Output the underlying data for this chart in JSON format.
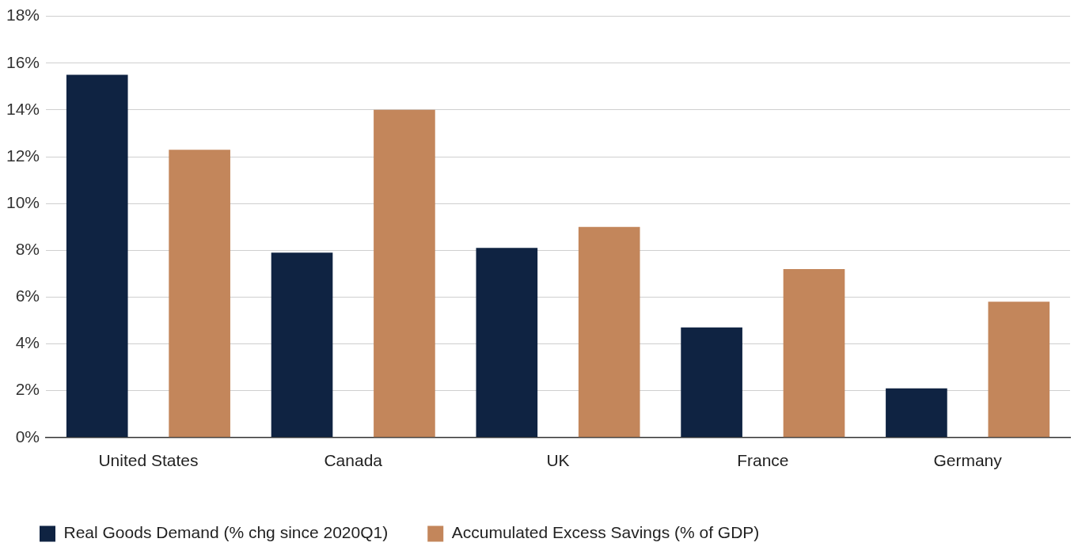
{
  "chart_data": {
    "type": "bar",
    "categories": [
      "United States",
      "Canada",
      "UK",
      "France",
      "Germany"
    ],
    "series": [
      {
        "name": "Real Goods Demand (% chg since 2020Q1)",
        "color": "#0f2342",
        "values": [
          15.5,
          7.9,
          8.1,
          4.7,
          2.1
        ]
      },
      {
        "name": "Accumulated Excess Savings (% of GDP)",
        "color": "#c3865b",
        "values": [
          12.3,
          14.0,
          9.0,
          7.2,
          5.8
        ]
      }
    ],
    "ylim": [
      0,
      18
    ],
    "yticks": [
      {
        "value": 0,
        "label": "0%"
      },
      {
        "value": 2,
        "label": "2%"
      },
      {
        "value": 4,
        "label": "4%"
      },
      {
        "value": 6,
        "label": "6%"
      },
      {
        "value": 8,
        "label": "8%"
      },
      {
        "value": 10,
        "label": "10%"
      },
      {
        "value": 12,
        "label": "12%"
      },
      {
        "value": 14,
        "label": "14%"
      },
      {
        "value": 16,
        "label": "16%"
      },
      {
        "value": 18,
        "label": "18%"
      }
    ],
    "grid": "y",
    "legend": "bottom left"
  }
}
